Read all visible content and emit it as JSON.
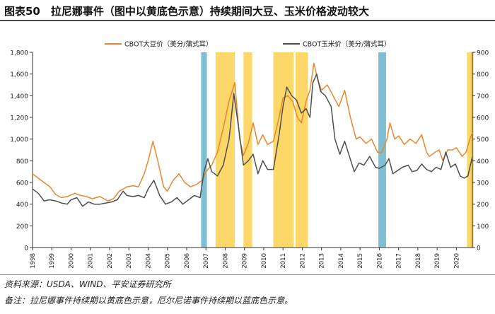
{
  "title": "图表50　拉尼娜事件（图中以黄底色示意）持续期间大豆、玉米价格波动较大",
  "source": "资料来源：USDA、WIND、平安证券研究所",
  "remark": "备注：拉尼娜事件持续期以黄底色示意，厄尔尼诺事件持续期以蓝底色示意。",
  "colors": {
    "soy": "#e8862e",
    "corn": "#4d4d4d",
    "lanina": "#fdd868",
    "elnino": "#7fbfd4"
  },
  "chart_data": {
    "type": "line",
    "x_range": [
      1998.0,
      2020.83
    ],
    "x_ticks": [
      "1998",
      "1999",
      "2000",
      "2001",
      "2002",
      "2003",
      "2004",
      "2005",
      "2006",
      "2007",
      "2008",
      "2009",
      "2010",
      "2011",
      "2012",
      "2013",
      "2014",
      "2015",
      "2016",
      "2017",
      "2018",
      "2019",
      "2020"
    ],
    "y_left": {
      "range": [
        0,
        1800
      ],
      "ticks": [
        "0",
        "200",
        "400",
        "600",
        "800",
        "1,000",
        "1,200",
        "1,400",
        "1,600",
        "1,800"
      ]
    },
    "y_right": {
      "range": [
        0,
        900
      ],
      "ticks": [
        "0",
        "100",
        "200",
        "300",
        "400",
        "500",
        "600",
        "700",
        "800",
        "900"
      ]
    },
    "legend_placement": "top",
    "series": [
      {
        "name": "CBOT大豆价（美分/蒲式耳）",
        "axis": "left",
        "points": [
          [
            1998.0,
            680
          ],
          [
            1998.3,
            640
          ],
          [
            1998.6,
            600
          ],
          [
            1998.9,
            560
          ],
          [
            1999.2,
            490
          ],
          [
            1999.5,
            460
          ],
          [
            1999.8,
            470
          ],
          [
            2000.2,
            500
          ],
          [
            2000.5,
            480
          ],
          [
            2000.8,
            470
          ],
          [
            2001.1,
            450
          ],
          [
            2001.5,
            470
          ],
          [
            2001.9,
            430
          ],
          [
            2002.2,
            450
          ],
          [
            2002.5,
            520
          ],
          [
            2002.9,
            560
          ],
          [
            2003.2,
            570
          ],
          [
            2003.5,
            560
          ],
          [
            2003.8,
            680
          ],
          [
            2004.0,
            800
          ],
          [
            2004.25,
            980
          ],
          [
            2004.5,
            800
          ],
          [
            2004.8,
            560
          ],
          [
            2005.0,
            520
          ],
          [
            2005.3,
            620
          ],
          [
            2005.6,
            680
          ],
          [
            2005.9,
            600
          ],
          [
            2006.2,
            560
          ],
          [
            2006.5,
            580
          ],
          [
            2006.8,
            620
          ],
          [
            2007.0,
            700
          ],
          [
            2007.3,
            760
          ],
          [
            2007.6,
            880
          ],
          [
            2007.9,
            1100
          ],
          [
            2008.2,
            1350
          ],
          [
            2008.5,
            1520
          ],
          [
            2008.75,
            1000
          ],
          [
            2008.95,
            850
          ],
          [
            2009.2,
            960
          ],
          [
            2009.45,
            1150
          ],
          [
            2009.7,
            950
          ],
          [
            2009.95,
            1040
          ],
          [
            2010.2,
            950
          ],
          [
            2010.5,
            980
          ],
          [
            2010.8,
            1200
          ],
          [
            2011.0,
            1380
          ],
          [
            2011.25,
            1400
          ],
          [
            2011.5,
            1350
          ],
          [
            2011.75,
            1200
          ],
          [
            2011.95,
            1150
          ],
          [
            2012.2,
            1350
          ],
          [
            2012.4,
            1450
          ],
          [
            2012.6,
            1700
          ],
          [
            2012.8,
            1550
          ],
          [
            2013.0,
            1450
          ],
          [
            2013.3,
            1500
          ],
          [
            2013.6,
            1400
          ],
          [
            2013.9,
            1300
          ],
          [
            2014.2,
            1450
          ],
          [
            2014.5,
            1200
          ],
          [
            2014.8,
            1000
          ],
          [
            2015.0,
            1020
          ],
          [
            2015.3,
            960
          ],
          [
            2015.6,
            1000
          ],
          [
            2015.9,
            880
          ],
          [
            2016.1,
            870
          ],
          [
            2016.4,
            1000
          ],
          [
            2016.55,
            1150
          ],
          [
            2016.8,
            1000
          ],
          [
            2017.0,
            1030
          ],
          [
            2017.3,
            950
          ],
          [
            2017.6,
            1000
          ],
          [
            2017.9,
            960
          ],
          [
            2018.2,
            1040
          ],
          [
            2018.45,
            880
          ],
          [
            2018.6,
            840
          ],
          [
            2018.9,
            880
          ],
          [
            2019.1,
            900
          ],
          [
            2019.3,
            800
          ],
          [
            2019.55,
            900
          ],
          [
            2019.8,
            900
          ],
          [
            2020.0,
            920
          ],
          [
            2020.3,
            840
          ],
          [
            2020.5,
            880
          ],
          [
            2020.7,
            1000
          ],
          [
            2020.83,
            1060
          ]
        ]
      },
      {
        "name": "CBOT玉米价（美分/蒲式耳）",
        "axis": "right",
        "points": [
          [
            1998.0,
            270
          ],
          [
            1998.3,
            250
          ],
          [
            1998.6,
            215
          ],
          [
            1998.9,
            220
          ],
          [
            1999.2,
            215
          ],
          [
            1999.5,
            205
          ],
          [
            1999.8,
            200
          ],
          [
            2000.0,
            220
          ],
          [
            2000.3,
            230
          ],
          [
            2000.6,
            190
          ],
          [
            2000.9,
            210
          ],
          [
            2001.2,
            200
          ],
          [
            2001.5,
            200
          ],
          [
            2001.8,
            205
          ],
          [
            2002.1,
            210
          ],
          [
            2002.4,
            220
          ],
          [
            2002.7,
            260
          ],
          [
            2002.9,
            240
          ],
          [
            2003.2,
            235
          ],
          [
            2003.5,
            240
          ],
          [
            2003.8,
            230
          ],
          [
            2004.0,
            270
          ],
          [
            2004.3,
            310
          ],
          [
            2004.6,
            240
          ],
          [
            2004.9,
            200
          ],
          [
            2005.2,
            210
          ],
          [
            2005.5,
            230
          ],
          [
            2005.8,
            200
          ],
          [
            2006.1,
            220
          ],
          [
            2006.4,
            240
          ],
          [
            2006.7,
            230
          ],
          [
            2006.9,
            350
          ],
          [
            2007.1,
            410
          ],
          [
            2007.3,
            350
          ],
          [
            2007.6,
            330
          ],
          [
            2007.9,
            380
          ],
          [
            2008.2,
            500
          ],
          [
            2008.45,
            710
          ],
          [
            2008.7,
            550
          ],
          [
            2008.95,
            380
          ],
          [
            2009.2,
            400
          ],
          [
            2009.45,
            430
          ],
          [
            2009.7,
            340
          ],
          [
            2009.95,
            400
          ],
          [
            2010.2,
            360
          ],
          [
            2010.5,
            360
          ],
          [
            2010.8,
            520
          ],
          [
            2011.0,
            650
          ],
          [
            2011.2,
            740
          ],
          [
            2011.45,
            700
          ],
          [
            2011.7,
            680
          ],
          [
            2011.95,
            620
          ],
          [
            2012.2,
            640
          ],
          [
            2012.4,
            600
          ],
          [
            2012.55,
            760
          ],
          [
            2012.75,
            800
          ],
          [
            2012.95,
            720
          ],
          [
            2013.2,
            700
          ],
          [
            2013.5,
            650
          ],
          [
            2013.7,
            500
          ],
          [
            2013.95,
            430
          ],
          [
            2014.2,
            490
          ],
          [
            2014.45,
            420
          ],
          [
            2014.7,
            350
          ],
          [
            2014.95,
            390
          ],
          [
            2015.2,
            380
          ],
          [
            2015.5,
            420
          ],
          [
            2015.8,
            370
          ],
          [
            2016.0,
            365
          ],
          [
            2016.3,
            380
          ],
          [
            2016.5,
            410
          ],
          [
            2016.7,
            340
          ],
          [
            2016.95,
            355
          ],
          [
            2017.2,
            370
          ],
          [
            2017.5,
            380
          ],
          [
            2017.7,
            350
          ],
          [
            2017.95,
            355
          ],
          [
            2018.2,
            385
          ],
          [
            2018.45,
            360
          ],
          [
            2018.7,
            350
          ],
          [
            2018.95,
            370
          ],
          [
            2019.2,
            360
          ],
          [
            2019.45,
            440
          ],
          [
            2019.7,
            370
          ],
          [
            2019.95,
            385
          ],
          [
            2020.2,
            330
          ],
          [
            2020.4,
            320
          ],
          [
            2020.6,
            330
          ],
          [
            2020.83,
            420
          ]
        ]
      }
    ],
    "bands": [
      {
        "kind": "elnino",
        "start": 2006.75,
        "end": 2007.05
      },
      {
        "kind": "lanina",
        "start": 2007.5,
        "end": 2008.5
      },
      {
        "kind": "lanina",
        "start": 2008.95,
        "end": 2009.4
      },
      {
        "kind": "lanina",
        "start": 2010.5,
        "end": 2011.55
      },
      {
        "kind": "lanina",
        "start": 2011.65,
        "end": 2012.3
      },
      {
        "kind": "elnino",
        "start": 2015.95,
        "end": 2016.35
      },
      {
        "kind": "lanina",
        "start": 2020.55,
        "end": 2020.9
      }
    ]
  }
}
